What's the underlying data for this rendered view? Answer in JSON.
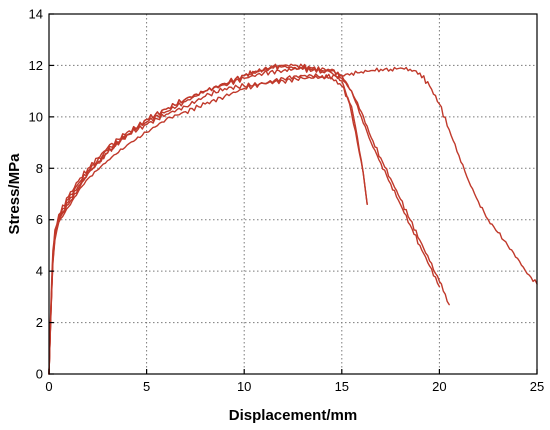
{
  "chart_data": {
    "type": "line",
    "title": "",
    "xlabel": "Displacement/mm",
    "ylabel": "Stress/MPa",
    "xlim": [
      0,
      25
    ],
    "ylim": [
      0,
      14
    ],
    "xticks": [
      0,
      5,
      10,
      15,
      20,
      25
    ],
    "yticks": [
      0,
      2,
      4,
      6,
      8,
      10,
      12,
      14
    ],
    "grid": true,
    "legend": "none",
    "color": "#c0392b",
    "series": [
      {
        "points": [
          [
            0,
            0
          ],
          [
            0.1,
            2.5
          ],
          [
            0.2,
            4.6
          ],
          [
            0.3,
            5.5
          ],
          [
            0.5,
            6.0
          ],
          [
            1,
            6.6
          ],
          [
            1.5,
            7.2
          ],
          [
            2,
            7.8
          ],
          [
            2.5,
            8.2
          ],
          [
            3,
            8.6
          ],
          [
            3.5,
            9.0
          ],
          [
            4,
            9.3
          ],
          [
            5,
            9.9
          ],
          [
            6,
            10.3
          ],
          [
            7,
            10.7
          ],
          [
            8,
            11.0
          ],
          [
            9,
            11.3
          ],
          [
            10,
            11.6
          ],
          [
            10.5,
            11.75
          ],
          [
            11,
            11.8
          ],
          [
            11.5,
            11.9
          ],
          [
            12,
            11.95
          ],
          [
            12.5,
            11.9
          ],
          [
            13,
            11.85
          ],
          [
            13.5,
            11.8
          ],
          [
            14,
            11.9
          ],
          [
            14.5,
            11.7
          ],
          [
            15,
            11.4
          ],
          [
            15.4,
            10.5
          ],
          [
            15.8,
            9.0
          ],
          [
            16.1,
            7.8
          ],
          [
            16.3,
            6.6
          ]
        ]
      },
      {
        "points": [
          [
            0,
            0
          ],
          [
            0.1,
            2.8
          ],
          [
            0.2,
            4.8
          ],
          [
            0.3,
            5.6
          ],
          [
            0.5,
            6.2
          ],
          [
            1,
            6.9
          ],
          [
            1.5,
            7.5
          ],
          [
            2,
            8.0
          ],
          [
            2.5,
            8.4
          ],
          [
            3,
            8.8
          ],
          [
            4,
            9.4
          ],
          [
            5,
            9.8
          ],
          [
            6,
            10.2
          ],
          [
            7,
            10.6
          ],
          [
            8,
            11.0
          ],
          [
            9,
            11.3
          ],
          [
            10,
            11.6
          ],
          [
            11,
            11.85
          ],
          [
            11.5,
            11.95
          ],
          [
            12,
            12.0
          ],
          [
            12.5,
            12.0
          ],
          [
            13,
            11.95
          ],
          [
            13.5,
            11.9
          ],
          [
            14,
            11.8
          ],
          [
            14.5,
            11.85
          ],
          [
            15,
            11.5
          ],
          [
            15.5,
            11.0
          ],
          [
            16,
            10.2
          ],
          [
            16.5,
            9.2
          ],
          [
            17,
            8.4
          ],
          [
            17.5,
            7.6
          ],
          [
            18,
            6.8
          ],
          [
            18.5,
            6.0
          ],
          [
            19,
            5.2
          ],
          [
            19.5,
            4.4
          ],
          [
            20,
            3.6
          ],
          [
            20.3,
            3.1
          ],
          [
            20.5,
            2.7
          ]
        ]
      },
      {
        "points": [
          [
            0,
            0
          ],
          [
            0.1,
            2.6
          ],
          [
            0.2,
            4.5
          ],
          [
            0.3,
            5.4
          ],
          [
            0.5,
            6.1
          ],
          [
            1,
            6.8
          ],
          [
            1.5,
            7.4
          ],
          [
            2,
            7.9
          ],
          [
            3,
            8.7
          ],
          [
            4,
            9.3
          ],
          [
            5,
            9.7
          ],
          [
            6,
            10.1
          ],
          [
            7,
            10.4
          ],
          [
            8,
            10.8
          ],
          [
            9,
            11.1
          ],
          [
            10,
            11.2
          ],
          [
            11,
            11.3
          ],
          [
            12,
            11.4
          ],
          [
            13,
            11.5
          ],
          [
            14,
            11.55
          ],
          [
            15,
            11.6
          ],
          [
            15.5,
            11.7
          ],
          [
            16,
            11.75
          ],
          [
            16.5,
            11.8
          ],
          [
            17,
            11.85
          ],
          [
            17.5,
            11.85
          ],
          [
            18,
            11.9
          ],
          [
            18.5,
            11.85
          ],
          [
            19,
            11.7
          ],
          [
            19.5,
            11.2
          ],
          [
            20,
            10.5
          ],
          [
            20.5,
            9.5
          ],
          [
            21,
            8.5
          ],
          [
            21.5,
            7.5
          ],
          [
            22,
            6.7
          ],
          [
            22.5,
            6.0
          ],
          [
            23,
            5.5
          ],
          [
            23.5,
            5.0
          ],
          [
            24,
            4.5
          ],
          [
            24.5,
            3.9
          ],
          [
            25,
            3.5
          ]
        ]
      },
      {
        "points": [
          [
            0,
            0
          ],
          [
            0.1,
            2.4
          ],
          [
            0.2,
            4.4
          ],
          [
            0.3,
            5.3
          ],
          [
            0.5,
            6.0
          ],
          [
            1,
            6.7
          ],
          [
            1.5,
            7.3
          ],
          [
            2,
            7.8
          ],
          [
            3,
            8.6
          ],
          [
            4,
            9.3
          ],
          [
            5,
            9.9
          ],
          [
            6,
            10.3
          ],
          [
            7,
            10.7
          ],
          [
            8,
            11.0
          ],
          [
            9,
            11.25
          ],
          [
            10,
            11.5
          ],
          [
            11,
            11.7
          ],
          [
            12,
            11.8
          ],
          [
            12.5,
            11.85
          ],
          [
            13,
            11.9
          ],
          [
            13.5,
            11.85
          ],
          [
            14,
            11.75
          ],
          [
            14.5,
            11.8
          ],
          [
            15,
            11.6
          ],
          [
            15.5,
            11.0
          ],
          [
            16,
            10.0
          ],
          [
            16.5,
            9.0
          ],
          [
            17,
            8.2
          ],
          [
            17.5,
            7.4
          ],
          [
            18,
            6.6
          ],
          [
            18.5,
            5.8
          ],
          [
            19,
            5.0
          ],
          [
            19.5,
            4.2
          ],
          [
            20,
            3.4
          ]
        ]
      },
      {
        "points": [
          [
            0,
            0
          ],
          [
            0.1,
            2.5
          ],
          [
            0.2,
            4.3
          ],
          [
            0.3,
            5.2
          ],
          [
            0.5,
            5.9
          ],
          [
            1,
            6.5
          ],
          [
            1.5,
            7.1
          ],
          [
            2,
            7.6
          ],
          [
            3,
            8.3
          ],
          [
            4,
            8.9
          ],
          [
            5,
            9.4
          ],
          [
            6,
            9.9
          ],
          [
            7,
            10.2
          ],
          [
            8,
            10.5
          ],
          [
            9,
            10.8
          ],
          [
            10,
            11.1
          ],
          [
            11,
            11.3
          ],
          [
            12,
            11.5
          ],
          [
            13,
            11.6
          ],
          [
            14,
            11.6
          ],
          [
            14.5,
            11.5
          ],
          [
            15,
            11.2
          ],
          [
            15.5,
            10.4
          ],
          [
            15.8,
            9.2
          ],
          [
            16.1,
            7.8
          ],
          [
            16.3,
            6.6
          ]
        ]
      }
    ]
  }
}
